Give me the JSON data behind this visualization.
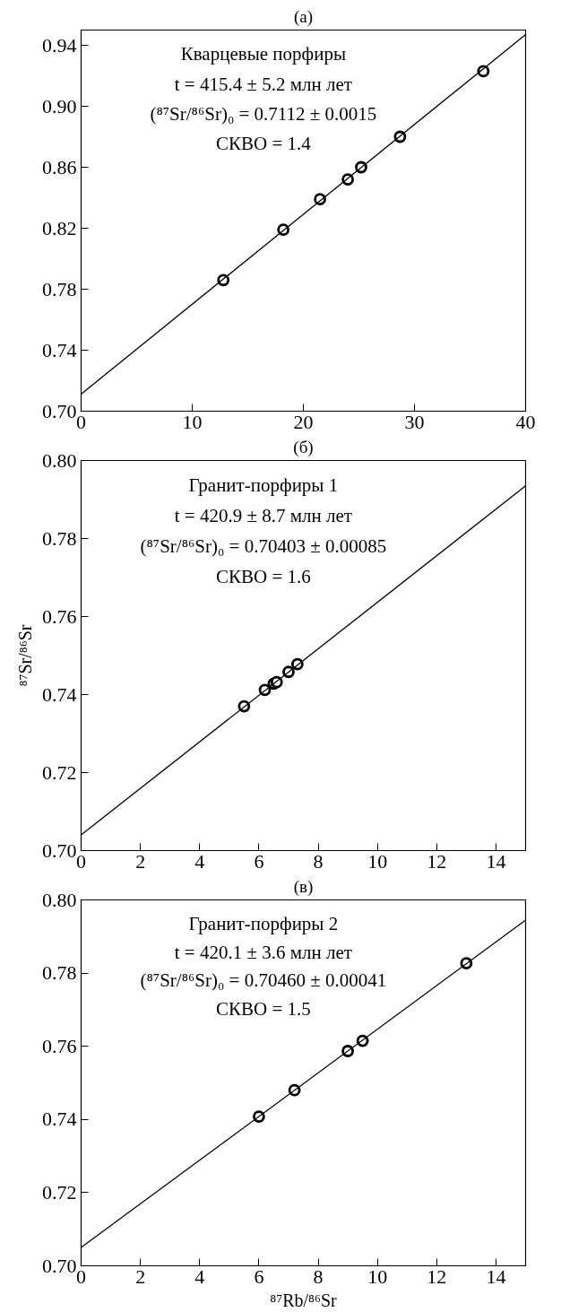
{
  "chart_data": [
    {
      "type": "scatter",
      "title": "(а)",
      "xlim": [
        0,
        40
      ],
      "ylim": [
        0.7,
        0.95
      ],
      "xticks": [
        0,
        10,
        20,
        30,
        40
      ],
      "yticks": [
        {
          "value": 0.7,
          "label": "0.70"
        },
        {
          "value": 0.74,
          "label": "0.74"
        },
        {
          "value": 0.78,
          "label": "0.78"
        },
        {
          "value": 0.82,
          "label": "0.82"
        },
        {
          "value": 0.86,
          "label": "0.86"
        },
        {
          "value": 0.9,
          "label": "0.90"
        },
        {
          "value": 0.94,
          "label": "0.94"
        }
      ],
      "grid": false,
      "annotations": [
        "Кварцевые порфиры",
        "t = 415.4 ± 5.2 млн лет",
        "(⁸⁷Sr/⁸⁶Sr)₀ = 0.7112 ± 0.0015",
        "СКВО = 1.4"
      ],
      "series": [
        {
          "marker": "circle",
          "color": "#000000",
          "x": [
            12.8,
            18.2,
            21.5,
            24.0,
            25.2,
            28.7,
            36.2
          ],
          "values": [
            0.786,
            0.819,
            0.839,
            0.852,
            0.86,
            0.88,
            0.923
          ]
        },
        {
          "type": "line",
          "marker": "none",
          "color": "#000000",
          "x": [
            0,
            40
          ],
          "values": [
            0.7112,
            0.947
          ]
        }
      ]
    },
    {
      "type": "scatter",
      "title": "(б)",
      "ylabel": "⁸⁷Sr/⁸⁶Sr",
      "xlim": [
        0,
        15
      ],
      "ylim": [
        0.7,
        0.8
      ],
      "xticks": [
        0,
        2,
        4,
        6,
        8,
        10,
        12,
        14
      ],
      "yticks": [
        {
          "value": 0.7,
          "label": "0.70"
        },
        {
          "value": 0.72,
          "label": "0.72"
        },
        {
          "value": 0.74,
          "label": "0.74"
        },
        {
          "value": 0.76,
          "label": "0.76"
        },
        {
          "value": 0.78,
          "label": "0.78"
        },
        {
          "value": 0.8,
          "label": "0.80"
        }
      ],
      "grid": false,
      "annotations": [
        "Гранит-порфиры 1",
        "t = 420.9 ± 8.7 млн лет",
        "(⁸⁷Sr/⁸⁶Sr)₀ = 0.70403 ± 0.00085",
        "СКВО = 1.6"
      ],
      "series": [
        {
          "marker": "circle",
          "color": "#000000",
          "x": [
            5.5,
            6.2,
            6.5,
            6.6,
            7.0,
            7.3
          ],
          "values": [
            0.737,
            0.7412,
            0.7428,
            0.7432,
            0.7458,
            0.7478
          ]
        },
        {
          "type": "line",
          "marker": "none",
          "color": "#000000",
          "x": [
            0,
            15
          ],
          "values": [
            0.704,
            0.7935
          ]
        }
      ]
    },
    {
      "type": "scatter",
      "title": "(в)",
      "xlabel": "⁸⁷Rb/⁸⁶Sr",
      "xlim": [
        0,
        15
      ],
      "ylim": [
        0.7,
        0.8
      ],
      "xticks": [
        0,
        2,
        4,
        6,
        8,
        10,
        12,
        14
      ],
      "yticks": [
        {
          "value": 0.7,
          "label": "0.70"
        },
        {
          "value": 0.72,
          "label": "0.72"
        },
        {
          "value": 0.74,
          "label": "0.74"
        },
        {
          "value": 0.76,
          "label": "0.76"
        },
        {
          "value": 0.78,
          "label": "0.78"
        },
        {
          "value": 0.8,
          "label": "0.80"
        }
      ],
      "grid": false,
      "annotations": [
        "Гранит-порфиры 2",
        "t = 420.1 ± 3.6 млн лет",
        "(⁸⁷Sr/⁸⁶Sr)₀ = 0.70460 ± 0.00041",
        "СКВО = 1.5"
      ],
      "series": [
        {
          "marker": "circle",
          "color": "#000000",
          "x": [
            6.0,
            7.2,
            9.0,
            9.5,
            13.0
          ],
          "values": [
            0.7408,
            0.748,
            0.7587,
            0.7615,
            0.7827
          ]
        },
        {
          "type": "line",
          "marker": "none",
          "color": "#000000",
          "x": [
            0,
            15
          ],
          "values": [
            0.705,
            0.7945
          ]
        }
      ]
    }
  ]
}
